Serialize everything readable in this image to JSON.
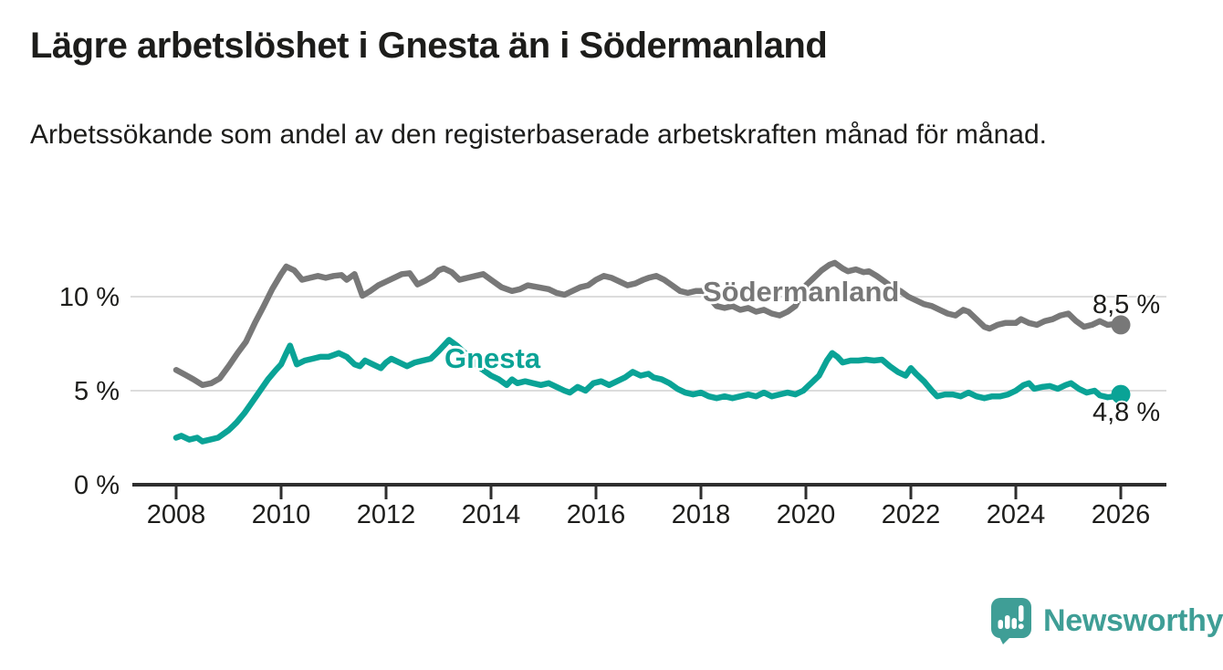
{
  "header": {
    "title": "Lägre arbetslöshet i Gnesta än i Södermanland",
    "subtitle": "Arbetssökande som andel av den registerbaserade arbetskraften månad för månad."
  },
  "branding": {
    "logo_text": "Newsworthy",
    "logo_icon": "bar-chart-speech-bubble-icon",
    "brand_color": "#3f9e96"
  },
  "colors": {
    "sodermanland_line": "#787878",
    "gnesta_line": "#0aa396",
    "gridline": "#dcdcdc",
    "axis": "#2e2e2e",
    "text": "#1d1d1b"
  },
  "chart_data": {
    "type": "line",
    "title": "Lägre arbetslöshet i Gnesta än i Södermanland",
    "xlabel": "",
    "ylabel": "",
    "y_unit": "%",
    "x_unit": "year, monthly observations",
    "xlim": [
      2007.2,
      2026.9
    ],
    "ylim": [
      0,
      12.2
    ],
    "grid": "horizontal",
    "legend_position": "inline-labels",
    "x_ticks": [
      2008,
      2010,
      2012,
      2014,
      2016,
      2018,
      2020,
      2022,
      2024,
      2026
    ],
    "y_ticks": [
      {
        "value": 0,
        "label": "0 %"
      },
      {
        "value": 5,
        "label": "5 %"
      },
      {
        "value": 10,
        "label": "10 %"
      }
    ],
    "series": [
      {
        "name": "Södermanland",
        "color": "#787878",
        "latest_value": 8.5,
        "latest_label": "8,5 %",
        "points": [
          [
            2008.0,
            6.1
          ],
          [
            2008.17,
            5.85
          ],
          [
            2008.33,
            5.6
          ],
          [
            2008.5,
            5.3
          ],
          [
            2008.67,
            5.4
          ],
          [
            2008.83,
            5.65
          ],
          [
            2009.0,
            6.3
          ],
          [
            2009.17,
            7.0
          ],
          [
            2009.33,
            7.6
          ],
          [
            2009.5,
            8.6
          ],
          [
            2009.67,
            9.5
          ],
          [
            2009.83,
            10.4
          ],
          [
            2010.0,
            11.2
          ],
          [
            2010.1,
            11.6
          ],
          [
            2010.25,
            11.4
          ],
          [
            2010.4,
            10.9
          ],
          [
            2010.55,
            11.0
          ],
          [
            2010.7,
            11.1
          ],
          [
            2010.85,
            11.0
          ],
          [
            2011.0,
            11.1
          ],
          [
            2011.15,
            11.15
          ],
          [
            2011.25,
            10.9
          ],
          [
            2011.4,
            11.2
          ],
          [
            2011.55,
            10.05
          ],
          [
            2011.7,
            10.3
          ],
          [
            2011.85,
            10.6
          ],
          [
            2012.0,
            10.8
          ],
          [
            2012.15,
            11.0
          ],
          [
            2012.3,
            11.2
          ],
          [
            2012.45,
            11.25
          ],
          [
            2012.6,
            10.65
          ],
          [
            2012.75,
            10.85
          ],
          [
            2012.9,
            11.1
          ],
          [
            2013.0,
            11.4
          ],
          [
            2013.1,
            11.5
          ],
          [
            2013.25,
            11.3
          ],
          [
            2013.4,
            10.9
          ],
          [
            2013.55,
            11.0
          ],
          [
            2013.7,
            11.1
          ],
          [
            2013.85,
            11.2
          ],
          [
            2014.0,
            10.9
          ],
          [
            2014.2,
            10.5
          ],
          [
            2014.4,
            10.3
          ],
          [
            2014.55,
            10.4
          ],
          [
            2014.7,
            10.6
          ],
          [
            2014.9,
            10.5
          ],
          [
            2015.1,
            10.4
          ],
          [
            2015.25,
            10.2
          ],
          [
            2015.4,
            10.1
          ],
          [
            2015.55,
            10.3
          ],
          [
            2015.7,
            10.5
          ],
          [
            2015.85,
            10.6
          ],
          [
            2016.0,
            10.9
          ],
          [
            2016.15,
            11.1
          ],
          [
            2016.3,
            11.0
          ],
          [
            2016.45,
            10.8
          ],
          [
            2016.6,
            10.6
          ],
          [
            2016.75,
            10.7
          ],
          [
            2016.9,
            10.9
          ],
          [
            2017.0,
            11.0
          ],
          [
            2017.15,
            11.1
          ],
          [
            2017.3,
            10.9
          ],
          [
            2017.45,
            10.6
          ],
          [
            2017.6,
            10.3
          ],
          [
            2017.75,
            10.2
          ],
          [
            2017.9,
            10.3
          ],
          [
            2018.05,
            10.3
          ],
          [
            2018.2,
            9.8
          ],
          [
            2018.3,
            9.5
          ],
          [
            2018.45,
            9.4
          ],
          [
            2018.6,
            9.5
          ],
          [
            2018.75,
            9.3
          ],
          [
            2018.9,
            9.4
          ],
          [
            2019.05,
            9.2
          ],
          [
            2019.2,
            9.3
          ],
          [
            2019.35,
            9.1
          ],
          [
            2019.5,
            9.0
          ],
          [
            2019.65,
            9.2
          ],
          [
            2019.8,
            9.5
          ],
          [
            2020.0,
            10.6
          ],
          [
            2020.15,
            11.0
          ],
          [
            2020.3,
            11.4
          ],
          [
            2020.45,
            11.7
          ],
          [
            2020.55,
            11.8
          ],
          [
            2020.7,
            11.5
          ],
          [
            2020.8,
            11.35
          ],
          [
            2020.95,
            11.45
          ],
          [
            2021.1,
            11.3
          ],
          [
            2021.2,
            11.35
          ],
          [
            2021.35,
            11.1
          ],
          [
            2021.5,
            10.8
          ],
          [
            2021.65,
            10.5
          ],
          [
            2021.8,
            10.3
          ],
          [
            2021.95,
            10.0
          ],
          [
            2022.1,
            9.8
          ],
          [
            2022.25,
            9.6
          ],
          [
            2022.4,
            9.5
          ],
          [
            2022.55,
            9.3
          ],
          [
            2022.7,
            9.1
          ],
          [
            2022.85,
            9.0
          ],
          [
            2023.0,
            9.3
          ],
          [
            2023.1,
            9.2
          ],
          [
            2023.25,
            8.8
          ],
          [
            2023.4,
            8.4
          ],
          [
            2023.5,
            8.3
          ],
          [
            2023.65,
            8.5
          ],
          [
            2023.8,
            8.6
          ],
          [
            2024.0,
            8.6
          ],
          [
            2024.1,
            8.8
          ],
          [
            2024.25,
            8.6
          ],
          [
            2024.4,
            8.5
          ],
          [
            2024.55,
            8.7
          ],
          [
            2024.7,
            8.8
          ],
          [
            2024.85,
            9.0
          ],
          [
            2025.0,
            9.1
          ],
          [
            2025.15,
            8.7
          ],
          [
            2025.3,
            8.4
          ],
          [
            2025.45,
            8.5
          ],
          [
            2025.6,
            8.7
          ],
          [
            2025.75,
            8.5
          ],
          [
            2025.9,
            8.55
          ],
          [
            2026.0,
            8.5
          ]
        ]
      },
      {
        "name": "Gnesta",
        "color": "#0aa396",
        "latest_value": 4.8,
        "latest_label": "4,8 %",
        "points": [
          [
            2008.0,
            2.5
          ],
          [
            2008.1,
            2.6
          ],
          [
            2008.25,
            2.4
          ],
          [
            2008.4,
            2.5
          ],
          [
            2008.5,
            2.3
          ],
          [
            2008.65,
            2.4
          ],
          [
            2008.8,
            2.5
          ],
          [
            2009.0,
            2.9
          ],
          [
            2009.15,
            3.3
          ],
          [
            2009.3,
            3.8
          ],
          [
            2009.45,
            4.4
          ],
          [
            2009.6,
            5.0
          ],
          [
            2009.75,
            5.6
          ],
          [
            2009.9,
            6.1
          ],
          [
            2010.0,
            6.4
          ],
          [
            2010.1,
            7.0
          ],
          [
            2010.17,
            7.4
          ],
          [
            2010.3,
            6.4
          ],
          [
            2010.45,
            6.6
          ],
          [
            2010.6,
            6.7
          ],
          [
            2010.75,
            6.8
          ],
          [
            2010.9,
            6.8
          ],
          [
            2011.0,
            6.9
          ],
          [
            2011.1,
            7.0
          ],
          [
            2011.25,
            6.8
          ],
          [
            2011.4,
            6.4
          ],
          [
            2011.5,
            6.3
          ],
          [
            2011.6,
            6.6
          ],
          [
            2011.75,
            6.4
          ],
          [
            2011.9,
            6.2
          ],
          [
            2012.0,
            6.5
          ],
          [
            2012.1,
            6.7
          ],
          [
            2012.25,
            6.5
          ],
          [
            2012.4,
            6.3
          ],
          [
            2012.55,
            6.5
          ],
          [
            2012.7,
            6.6
          ],
          [
            2012.85,
            6.7
          ],
          [
            2013.0,
            7.1
          ],
          [
            2013.1,
            7.4
          ],
          [
            2013.2,
            7.7
          ],
          [
            2013.35,
            7.4
          ],
          [
            2013.5,
            7.0
          ],
          [
            2013.65,
            6.6
          ],
          [
            2013.8,
            6.2
          ],
          [
            2014.0,
            5.8
          ],
          [
            2014.15,
            5.6
          ],
          [
            2014.3,
            5.3
          ],
          [
            2014.4,
            5.6
          ],
          [
            2014.5,
            5.4
          ],
          [
            2014.65,
            5.5
          ],
          [
            2014.8,
            5.4
          ],
          [
            2014.95,
            5.3
          ],
          [
            2015.1,
            5.4
          ],
          [
            2015.25,
            5.2
          ],
          [
            2015.4,
            5.0
          ],
          [
            2015.5,
            4.9
          ],
          [
            2015.65,
            5.2
          ],
          [
            2015.8,
            5.0
          ],
          [
            2015.95,
            5.4
          ],
          [
            2016.1,
            5.5
          ],
          [
            2016.25,
            5.3
          ],
          [
            2016.4,
            5.5
          ],
          [
            2016.55,
            5.7
          ],
          [
            2016.7,
            6.0
          ],
          [
            2016.85,
            5.8
          ],
          [
            2017.0,
            5.9
          ],
          [
            2017.1,
            5.7
          ],
          [
            2017.25,
            5.6
          ],
          [
            2017.4,
            5.4
          ],
          [
            2017.55,
            5.1
          ],
          [
            2017.7,
            4.9
          ],
          [
            2017.85,
            4.8
          ],
          [
            2018.0,
            4.9
          ],
          [
            2018.15,
            4.7
          ],
          [
            2018.3,
            4.6
          ],
          [
            2018.45,
            4.7
          ],
          [
            2018.6,
            4.6
          ],
          [
            2018.75,
            4.7
          ],
          [
            2018.9,
            4.8
          ],
          [
            2019.05,
            4.7
          ],
          [
            2019.2,
            4.9
          ],
          [
            2019.35,
            4.7
          ],
          [
            2019.5,
            4.8
          ],
          [
            2019.65,
            4.9
          ],
          [
            2019.8,
            4.8
          ],
          [
            2019.95,
            5.0
          ],
          [
            2020.1,
            5.4
          ],
          [
            2020.25,
            5.8
          ],
          [
            2020.4,
            6.6
          ],
          [
            2020.5,
            7.0
          ],
          [
            2020.6,
            6.8
          ],
          [
            2020.7,
            6.5
          ],
          [
            2020.85,
            6.6
          ],
          [
            2021.0,
            6.6
          ],
          [
            2021.15,
            6.65
          ],
          [
            2021.3,
            6.6
          ],
          [
            2021.45,
            6.65
          ],
          [
            2021.6,
            6.3
          ],
          [
            2021.75,
            6.0
          ],
          [
            2021.9,
            5.8
          ],
          [
            2022.0,
            6.2
          ],
          [
            2022.1,
            5.9
          ],
          [
            2022.25,
            5.5
          ],
          [
            2022.4,
            5.0
          ],
          [
            2022.5,
            4.7
          ],
          [
            2022.65,
            4.8
          ],
          [
            2022.8,
            4.8
          ],
          [
            2022.95,
            4.7
          ],
          [
            2023.1,
            4.9
          ],
          [
            2023.25,
            4.7
          ],
          [
            2023.4,
            4.6
          ],
          [
            2023.55,
            4.7
          ],
          [
            2023.7,
            4.7
          ],
          [
            2023.85,
            4.8
          ],
          [
            2024.0,
            5.0
          ],
          [
            2024.15,
            5.3
          ],
          [
            2024.25,
            5.4
          ],
          [
            2024.35,
            5.1
          ],
          [
            2024.5,
            5.2
          ],
          [
            2024.65,
            5.25
          ],
          [
            2024.8,
            5.1
          ],
          [
            2024.95,
            5.3
          ],
          [
            2025.05,
            5.4
          ],
          [
            2025.2,
            5.1
          ],
          [
            2025.35,
            4.9
          ],
          [
            2025.5,
            5.0
          ],
          [
            2025.6,
            4.75
          ],
          [
            2025.75,
            4.65
          ],
          [
            2025.9,
            4.7
          ],
          [
            2026.0,
            4.8
          ]
        ]
      }
    ]
  }
}
